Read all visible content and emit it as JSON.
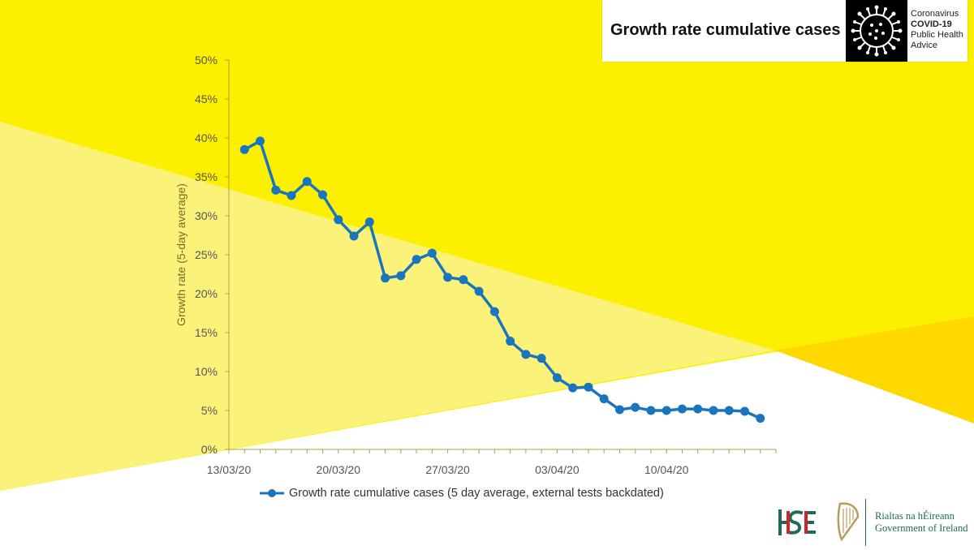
{
  "header": {
    "title": "Growth rate cumulative cases",
    "badge_line1": "Coronavirus",
    "badge_line2": "COVID-19",
    "badge_line3": "Public Health",
    "badge_line4": "Advice"
  },
  "footer": {
    "hse_logo": "HSE",
    "gov_line1": "Rialtas na hÉireann",
    "gov_line2": "Government of Ireland"
  },
  "colors": {
    "yellow": "#fcef00",
    "light_yellow": "#fbf27a",
    "gold": "#ffd800",
    "series": "#1b75bc",
    "hse_green": "#1f6b58",
    "hse_red": "#d2232a"
  },
  "chart_data": {
    "type": "line",
    "title": "Growth rate cumulative cases",
    "xlabel": "",
    "ylabel": "Growth rate (5-day average)",
    "ylim": [
      0,
      50
    ],
    "yticks": [
      "0%",
      "5%",
      "10%",
      "15%",
      "20%",
      "25%",
      "30%",
      "35%",
      "40%",
      "45%",
      "50%"
    ],
    "x_range_days": [
      0,
      35
    ],
    "xticks": [
      {
        "day": 0,
        "label": "13/03/20"
      },
      {
        "day": 7,
        "label": "20/03/20"
      },
      {
        "day": 14,
        "label": "27/03/20"
      },
      {
        "day": 21,
        "label": "03/04/20"
      },
      {
        "day": 28,
        "label": "10/04/20"
      }
    ],
    "legend": "bottom",
    "series": [
      {
        "name": "Growth rate cumulative cases (5 day average, external tests backdated)",
        "start_day": 1,
        "values": [
          38.5,
          39.6,
          33.3,
          32.6,
          34.4,
          32.7,
          29.5,
          27.4,
          29.2,
          22.0,
          22.3,
          24.4,
          25.2,
          22.1,
          21.8,
          20.3,
          17.7,
          13.9,
          12.2,
          11.7,
          9.2,
          7.9,
          8.0,
          6.5,
          5.1,
          5.4,
          5.0,
          5.0,
          5.2,
          5.2,
          5.0,
          5.0,
          4.9,
          4.0
        ]
      }
    ]
  }
}
